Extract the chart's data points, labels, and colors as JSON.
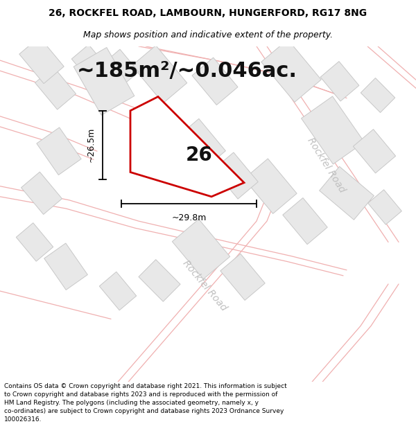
{
  "title_line1": "26, ROCKFEL ROAD, LAMBOURN, HUNGERFORD, RG17 8NG",
  "title_line2": "Map shows position and indicative extent of the property.",
  "area_text": "~185m²/~0.046ac.",
  "property_number": "26",
  "dim_width": "~29.8m",
  "dim_height": "~26.5m",
  "footer_text": "Contains OS data © Crown copyright and database right 2021. This information is subject to Crown copyright and database rights 2023 and is reproduced with the permission of HM Land Registry. The polygons (including the associated geometry, namely x, y co-ordinates) are subject to Crown copyright and database rights 2023 Ordnance Survey 100026316.",
  "bg_color": "#ffffff",
  "map_bg": "#ffffff",
  "plot_fill": "#ffffff",
  "plot_outline": "#cc0000",
  "neighbor_fill": "#e8e8e8",
  "neighbor_outline": "#c8c8c8",
  "road_line_color": "#f0b0b0",
  "road_text_color": "#c0c0c0",
  "title_color": "#000000",
  "footer_color": "#000000",
  "dim_color": "#000000",
  "title_fontsize": 10,
  "subtitle_fontsize": 9,
  "area_fontsize": 22,
  "prop_num_fontsize": 20,
  "dim_fontsize": 9,
  "road_fontsize": 10,
  "footer_fontsize": 6.5
}
